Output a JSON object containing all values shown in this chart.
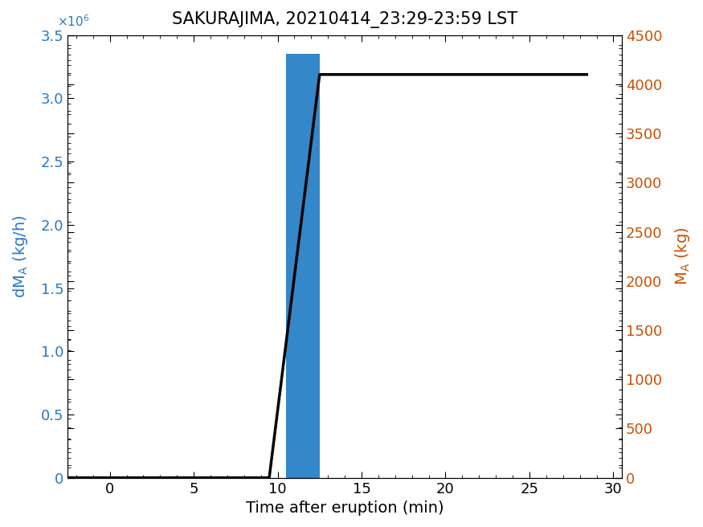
{
  "title": "SAKURAJIMA, 20210414_23:29-23:59 LST",
  "xlabel": "Time after eruption (min)",
  "ylabel_left": "dM_A (kg/h)",
  "ylabel_right": "M_A (kg)",
  "xlim": [
    -2.5,
    30.5
  ],
  "ylim_left": [
    0,
    3500000.0
  ],
  "ylim_right": [
    0,
    4500
  ],
  "xticks": [
    0,
    5,
    10,
    15,
    20,
    25,
    30
  ],
  "yticks_left": [
    0,
    500000,
    1000000,
    1500000,
    2000000,
    2500000,
    3000000,
    3500000
  ],
  "yticks_right": [
    0,
    500,
    1000,
    1500,
    2000,
    2500,
    3000,
    3500,
    4000,
    4500
  ],
  "bar_x": 11.5,
  "bar_width": 2.0,
  "bar_height": 3350000.0,
  "bar_color": "#3487C8",
  "line_x": [
    -2.5,
    9.5,
    12.5,
    28.5
  ],
  "line_y": [
    0,
    0,
    4100,
    4100
  ],
  "line_color": "#000000",
  "line_width": 2.5,
  "title_fontsize": 15,
  "label_fontsize": 14,
  "tick_fontsize": 13,
  "left_label_color": "#2878C8",
  "right_label_color": "#C85000"
}
